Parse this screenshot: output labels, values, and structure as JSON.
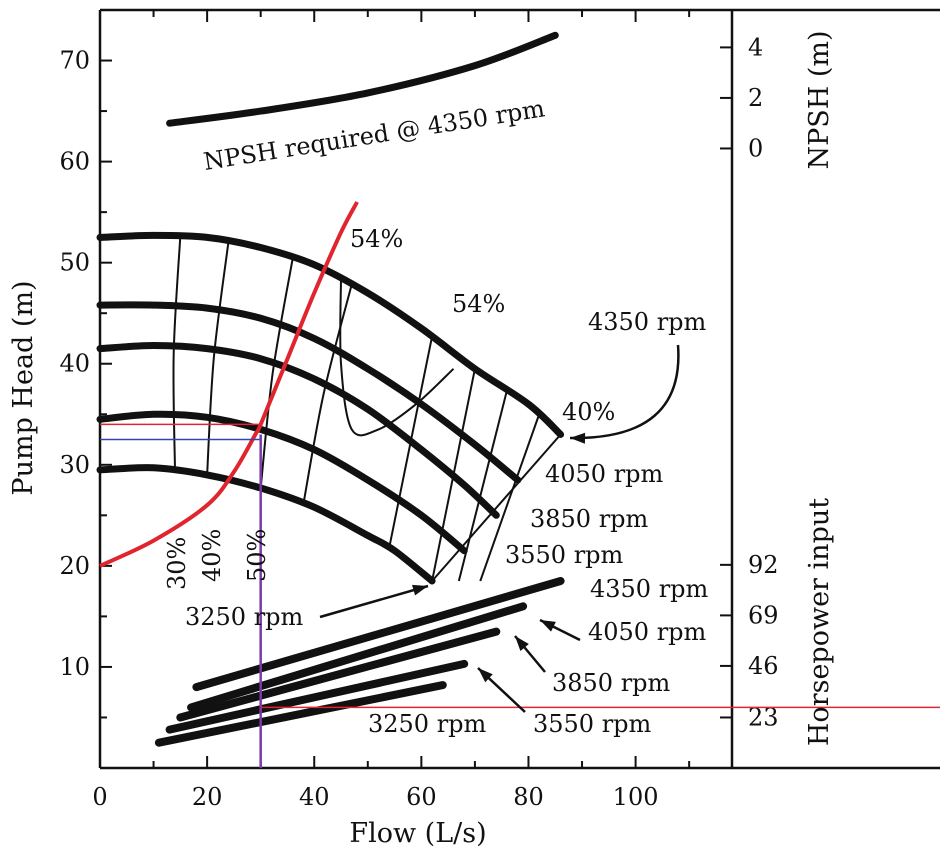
{
  "chart_data": {
    "type": "line",
    "title": "",
    "xlabel": "Flow (L/s)",
    "ylabel": "Pump Head (m)",
    "xlim": [
      0,
      118
    ],
    "ylim": [
      0,
      75
    ],
    "xticks": [
      0,
      20,
      40,
      60,
      80,
      100
    ],
    "yticks": [
      10,
      20,
      30,
      40,
      50,
      60,
      70
    ],
    "right_axes": [
      {
        "label": "NPSH (m)",
        "ticks": [
          {
            "label": "4",
            "y": 71.3
          },
          {
            "label": "2",
            "y": 66.3
          },
          {
            "label": "0",
            "y": 61.3
          }
        ]
      },
      {
        "label": "Horsepower input",
        "ticks": [
          {
            "label": "92",
            "y": 20.1
          },
          {
            "label": "69",
            "y": 15.1
          },
          {
            "label": "46",
            "y": 10.1
          },
          {
            "label": "23",
            "y": 5.0
          }
        ]
      }
    ],
    "head_curves": [
      {
        "speed": "4350 rpm",
        "x": [
          0,
          10,
          20,
          30,
          40,
          50,
          60,
          70,
          80,
          86
        ],
        "y": [
          52.5,
          52.7,
          52.5,
          51.5,
          49.8,
          47.0,
          43.5,
          39.5,
          36.0,
          33.0
        ]
      },
      {
        "speed": "4050 rpm",
        "x": [
          0,
          10,
          20,
          30,
          40,
          50,
          60,
          70,
          78
        ],
        "y": [
          45.8,
          45.8,
          45.5,
          44.5,
          42.5,
          39.5,
          36.0,
          32.0,
          28.5
        ]
      },
      {
        "speed": "3850 rpm",
        "x": [
          0,
          10,
          20,
          30,
          40,
          50,
          60,
          68,
          74
        ],
        "y": [
          41.5,
          41.8,
          41.5,
          40.5,
          38.5,
          35.5,
          31.5,
          28.0,
          25.0
        ]
      },
      {
        "speed": "3550 rpm",
        "x": [
          0,
          10,
          20,
          30,
          40,
          50,
          60,
          68
        ],
        "y": [
          34.5,
          35.0,
          34.7,
          33.5,
          31.5,
          28.5,
          25.0,
          21.5
        ]
      },
      {
        "speed": "3250 rpm",
        "x": [
          0,
          10,
          20,
          30,
          40,
          50,
          55,
          62
        ],
        "y": [
          29.5,
          29.7,
          29.0,
          27.7,
          25.8,
          23.0,
          21.5,
          18.5
        ]
      }
    ],
    "npsh_required": {
      "label": "NPSH required @ 4350 rpm",
      "x": [
        13,
        30,
        50,
        70,
        85
      ],
      "y": [
        63.8,
        65.0,
        66.8,
        69.5,
        72.5
      ]
    },
    "system_curve": {
      "color": "#e0252e",
      "x": [
        0,
        10,
        20,
        25,
        29,
        30,
        35,
        40,
        45,
        48
      ],
      "y": [
        20.0,
        22.5,
        26.0,
        29.3,
        33.0,
        34.0,
        40.5,
        47.0,
        53.0,
        56.0
      ]
    },
    "efficiency_labels": [
      "30%",
      "40%",
      "50%",
      "54%",
      "54%",
      "40%"
    ],
    "horsepower_curves": [
      {
        "speed": "4350 rpm",
        "x": [
          18,
          86
        ],
        "y": [
          8.0,
          18.5
        ]
      },
      {
        "speed": "4050 rpm",
        "x": [
          17,
          79
        ],
        "y": [
          6.0,
          16.0
        ]
      },
      {
        "speed": "3850 rpm",
        "x": [
          15,
          74
        ],
        "y": [
          5.0,
          13.5
        ]
      },
      {
        "speed": "3550 rpm",
        "x": [
          13,
          68
        ],
        "y": [
          3.8,
          10.3
        ]
      },
      {
        "speed": "3250 rpm",
        "x": [
          11,
          64
        ],
        "y": [
          2.5,
          8.2
        ]
      }
    ],
    "operating_point": {
      "x": 30,
      "head": 33,
      "hp_level": 6.0
    },
    "speed_labels": [
      "4350 rpm",
      "4050 rpm",
      "3850 rpm",
      "3550 rpm",
      "3250 rpm",
      "4350 rpm",
      "4050 rpm",
      "3850 rpm",
      "3550 rpm",
      "3250 rpm"
    ]
  }
}
